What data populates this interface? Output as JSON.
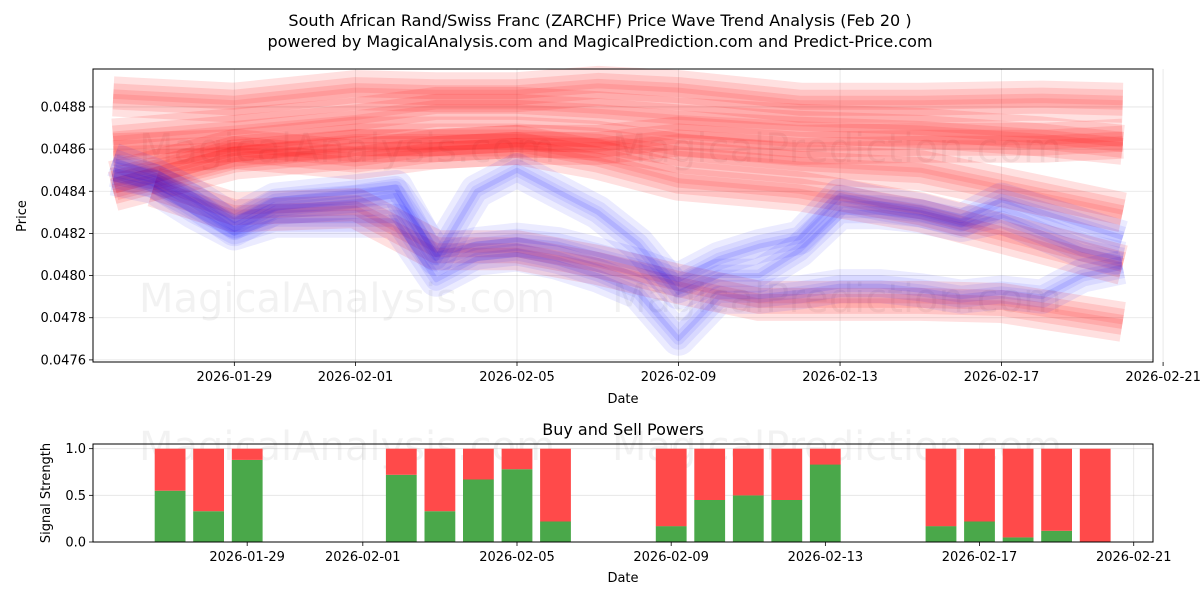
{
  "title_line1": "South African Rand/Swiss Franc (ZARCHF) Price Wave Trend Analysis (Feb 20 )",
  "title_line2": "powered by MagicalAnalysis.com and MagicalPrediction.com and Predict-Price.com",
  "watermarks": {
    "left": "MagicalAnalysis.com",
    "right": "MagicalPrediction.com"
  },
  "colors": {
    "buy": "#4aa84a",
    "sell": "#ff4a4a",
    "wave_red": "#ff0000",
    "wave_blue": "#0000ff"
  },
  "chart_data": [
    {
      "type": "line",
      "name": "price-wave-chart",
      "xlabel": "Date",
      "ylabel": "Price",
      "grid": true,
      "xlim": [
        "2026-01-25T12:00",
        "2026-02-20T18:00"
      ],
      "ylim": [
        0.04759,
        0.04898
      ],
      "xticks": [
        "2026-01-29",
        "2026-02-01",
        "2026-02-05",
        "2026-02-09",
        "2026-02-13",
        "2026-02-17",
        "2026-02-21"
      ],
      "yticks": [
        0.0476,
        0.0478,
        0.048,
        0.0482,
        0.0484,
        0.0486,
        0.0488
      ],
      "series": [
        {
          "name": "red-wave-upper",
          "color": "red",
          "x": [
            "2026-01-26",
            "2026-01-29",
            "2026-02-01",
            "2026-02-03",
            "2026-02-05",
            "2026-02-07",
            "2026-02-09",
            "2026-02-12",
            "2026-02-15",
            "2026-02-18",
            "2026-02-20"
          ],
          "values": [
            0.04885,
            0.04882,
            0.04888,
            0.04887,
            0.04887,
            0.0489,
            0.04888,
            0.04882,
            0.04882,
            0.04883,
            0.04882
          ]
        },
        {
          "name": "red-wave-main",
          "color": "red",
          "x": [
            "2026-01-26",
            "2026-01-29",
            "2026-02-01",
            "2026-02-03",
            "2026-02-05",
            "2026-02-07",
            "2026-02-09",
            "2026-02-12",
            "2026-02-15",
            "2026-02-18",
            "2026-02-20"
          ],
          "values": [
            0.04865,
            0.0487,
            0.04875,
            0.0488,
            0.0488,
            0.04878,
            0.04875,
            0.04872,
            0.0487,
            0.04866,
            0.04862
          ]
        },
        {
          "name": "red-wave-lower",
          "color": "red",
          "x": [
            "2026-01-26",
            "2026-01-29",
            "2026-02-01",
            "2026-02-03",
            "2026-02-05",
            "2026-02-07",
            "2026-02-09",
            "2026-02-12",
            "2026-02-15",
            "2026-02-18",
            "2026-02-20"
          ],
          "values": [
            0.04858,
            0.0486,
            0.04855,
            0.0486,
            0.04862,
            0.04862,
            0.04866,
            0.04862,
            0.04863,
            0.04863,
            0.04865
          ]
        },
        {
          "name": "red-wave-descending",
          "color": "red",
          "x": [
            "2026-01-26",
            "2026-01-29",
            "2026-02-01",
            "2026-02-03",
            "2026-02-05",
            "2026-02-07",
            "2026-02-09",
            "2026-02-12",
            "2026-02-15",
            "2026-02-18",
            "2026-02-20"
          ],
          "values": [
            0.04845,
            0.0486,
            0.04866,
            0.04866,
            0.04866,
            0.04864,
            0.04858,
            0.04853,
            0.0485,
            0.04838,
            0.0483
          ]
        },
        {
          "name": "red-wave-lowest",
          "color": "red",
          "x": [
            "2026-01-26",
            "2026-01-29",
            "2026-02-01",
            "2026-02-03",
            "2026-02-05",
            "2026-02-07",
            "2026-02-09",
            "2026-02-12",
            "2026-02-15",
            "2026-02-18",
            "2026-02-20"
          ],
          "values": [
            0.0484,
            0.04855,
            0.0486,
            0.0486,
            0.04862,
            0.04855,
            0.04845,
            0.0484,
            0.0483,
            0.04815,
            0.04805
          ]
        },
        {
          "name": "pink-wave-mid",
          "color": "red",
          "x": [
            "2026-01-27",
            "2026-01-29",
            "2026-02-01",
            "2026-02-03",
            "2026-02-05",
            "2026-02-07",
            "2026-02-09",
            "2026-02-11",
            "2026-02-13",
            "2026-02-15",
            "2026-02-17",
            "2026-02-20"
          ],
          "values": [
            0.04842,
            0.0483,
            0.04832,
            0.04812,
            0.04812,
            0.04805,
            0.04796,
            0.04788,
            0.04788,
            0.04788,
            0.04787,
            0.04778
          ]
        },
        {
          "name": "blue-wave-1",
          "color": "blue",
          "x": [
            "2026-01-26",
            "2026-01-27",
            "2026-01-28",
            "2026-01-29",
            "2026-01-30",
            "2026-02-01",
            "2026-02-02",
            "2026-02-03",
            "2026-02-04",
            "2026-02-05",
            "2026-02-06",
            "2026-02-07",
            "2026-02-08",
            "2026-02-09",
            "2026-02-10",
            "2026-02-11",
            "2026-02-12",
            "2026-02-13",
            "2026-02-14",
            "2026-02-15",
            "2026-02-16",
            "2026-02-17",
            "2026-02-18",
            "2026-02-19",
            "2026-02-20"
          ],
          "values": [
            0.0485,
            0.04845,
            0.04835,
            0.04822,
            0.04832,
            0.04835,
            0.04838,
            0.0481,
            0.04815,
            0.04817,
            0.04815,
            0.0481,
            0.04805,
            0.04798,
            0.04808,
            0.04814,
            0.04818,
            0.04838,
            0.04834,
            0.04831,
            0.04826,
            0.04836,
            0.0483,
            0.04824,
            0.04818
          ]
        },
        {
          "name": "blue-wave-2",
          "color": "blue",
          "x": [
            "2026-01-26",
            "2026-01-27",
            "2026-01-28",
            "2026-01-29",
            "2026-01-30",
            "2026-02-01",
            "2026-02-02",
            "2026-02-03",
            "2026-02-04",
            "2026-02-05",
            "2026-02-06",
            "2026-02-07",
            "2026-02-08",
            "2026-02-09",
            "2026-02-10",
            "2026-02-11",
            "2026-02-12",
            "2026-02-13",
            "2026-02-14",
            "2026-02-15",
            "2026-02-16",
            "2026-02-17",
            "2026-02-18",
            "2026-02-19",
            "2026-02-20"
          ],
          "values": [
            0.04855,
            0.04848,
            0.04838,
            0.04826,
            0.04836,
            0.0484,
            0.04842,
            0.04808,
            0.0484,
            0.0485,
            0.0484,
            0.0483,
            0.04815,
            0.04792,
            0.048,
            0.048,
            0.04812,
            0.0483,
            0.0483,
            0.04828,
            0.04824,
            0.04828,
            0.0482,
            0.04812,
            0.04808
          ]
        },
        {
          "name": "blue-wave-3",
          "color": "blue",
          "x": [
            "2026-01-26",
            "2026-01-27",
            "2026-01-28",
            "2026-01-29",
            "2026-01-30",
            "2026-02-01",
            "2026-02-02",
            "2026-02-03",
            "2026-02-04",
            "2026-02-05",
            "2026-02-06",
            "2026-02-07",
            "2026-02-08",
            "2026-02-09",
            "2026-02-10",
            "2026-02-11",
            "2026-02-12",
            "2026-02-13",
            "2026-02-14",
            "2026-02-15",
            "2026-02-16",
            "2026-02-17",
            "2026-02-18",
            "2026-02-19",
            "2026-02-20"
          ],
          "values": [
            0.04846,
            0.04842,
            0.0483,
            0.0482,
            0.04826,
            0.04826,
            0.04826,
            0.04798,
            0.04808,
            0.0481,
            0.04806,
            0.048,
            0.04792,
            0.0477,
            0.0479,
            0.0479,
            0.04792,
            0.04795,
            0.04795,
            0.04793,
            0.0479,
            0.04792,
            0.0479,
            0.048,
            0.04804
          ]
        }
      ]
    },
    {
      "type": "bar",
      "name": "buy-sell-powers",
      "title": "Buy and Sell Powers",
      "xlabel": "Date",
      "ylabel": "Signal Strength",
      "ylim": [
        0,
        1.05
      ],
      "yticks": [
        0.0,
        0.5,
        1.0
      ],
      "xticks": [
        "2026-01-29",
        "2026-02-01",
        "2026-02-05",
        "2026-02-09",
        "2026-02-13",
        "2026-02-17",
        "2026-02-21"
      ],
      "categories": [
        "2026-01-27",
        "2026-01-28",
        "2026-01-29",
        "2026-02-02",
        "2026-02-03",
        "2026-02-04",
        "2026-02-05",
        "2026-02-06",
        "2026-02-09",
        "2026-02-10",
        "2026-02-11",
        "2026-02-12",
        "2026-02-13",
        "2026-02-16",
        "2026-02-17",
        "2026-02-18",
        "2026-02-19",
        "2026-02-20"
      ],
      "series": [
        {
          "name": "Buy",
          "values": [
            0.55,
            0.33,
            0.88,
            0.72,
            0.33,
            0.67,
            0.78,
            0.22,
            0.17,
            0.45,
            0.5,
            0.45,
            0.83,
            0.17,
            0.22,
            0.05,
            0.12,
            0.0
          ]
        },
        {
          "name": "Sell",
          "values": [
            0.45,
            0.67,
            0.12,
            0.28,
            0.67,
            0.33,
            0.22,
            0.78,
            0.83,
            0.55,
            0.5,
            0.55,
            0.17,
            0.83,
            0.78,
            0.95,
            0.88,
            1.0
          ]
        }
      ]
    }
  ]
}
